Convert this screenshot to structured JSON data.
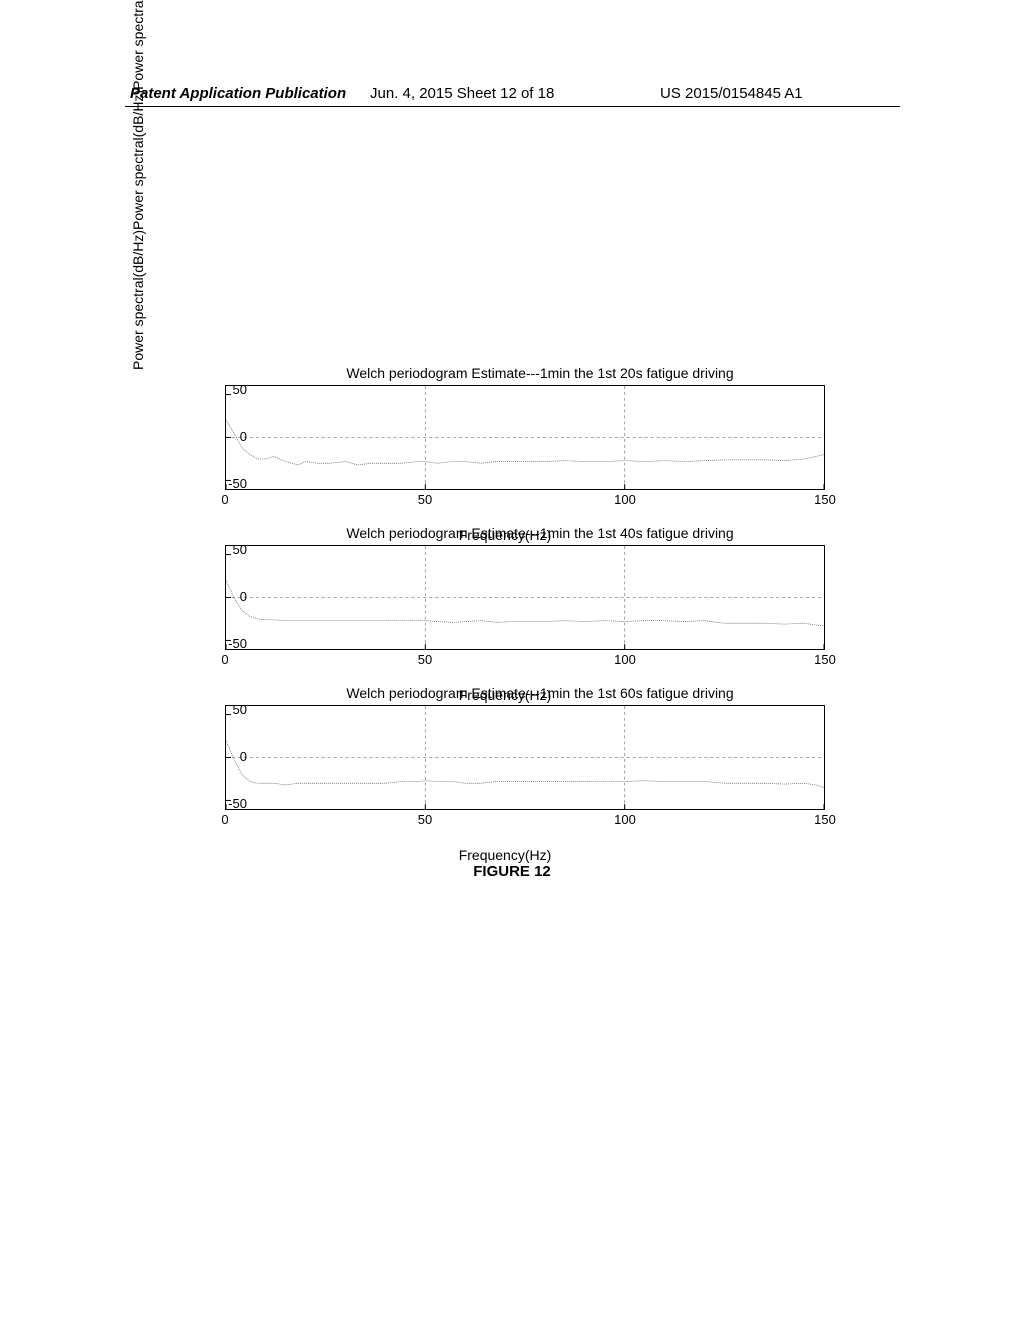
{
  "header": {
    "left": "Patent Application Publication",
    "center": "Jun. 4, 2015   Sheet 12 of 18",
    "right": "US 2015/0154845 A1"
  },
  "charts": [
    {
      "title": "Welch periodogram Estimate---1min the 1st 20s fatigue driving",
      "y_label": "Power spectral(dB/Hz)",
      "x_label": "Frequency(Hz)",
      "y_ticks": [
        50,
        0,
        -50
      ],
      "x_ticks": [
        0,
        50,
        100,
        150
      ],
      "xlim": [
        0,
        150
      ],
      "ylim": [
        -60,
        60
      ],
      "grid_v": [
        50,
        100
      ],
      "grid_h": [
        0
      ],
      "line_color": "#555555",
      "bg_color": "#ffffff",
      "series": [
        [
          0,
          20
        ],
        [
          2,
          5
        ],
        [
          4,
          -12
        ],
        [
          6,
          -20
        ],
        [
          8,
          -25
        ],
        [
          10,
          -25
        ],
        [
          12,
          -22
        ],
        [
          15,
          -28
        ],
        [
          18,
          -32
        ],
        [
          20,
          -28
        ],
        [
          23,
          -30
        ],
        [
          26,
          -30
        ],
        [
          30,
          -28
        ],
        [
          33,
          -32
        ],
        [
          36,
          -30
        ],
        [
          40,
          -30
        ],
        [
          44,
          -30
        ],
        [
          48,
          -28
        ],
        [
          50,
          -28
        ],
        [
          53,
          -30
        ],
        [
          57,
          -28
        ],
        [
          60,
          -28
        ],
        [
          64,
          -30
        ],
        [
          68,
          -28
        ],
        [
          72,
          -28
        ],
        [
          76,
          -28
        ],
        [
          80,
          -28
        ],
        [
          85,
          -27
        ],
        [
          90,
          -28
        ],
        [
          95,
          -28
        ],
        [
          100,
          -27
        ],
        [
          105,
          -28
        ],
        [
          110,
          -27
        ],
        [
          115,
          -28
        ],
        [
          120,
          -27
        ],
        [
          125,
          -26
        ],
        [
          130,
          -26
        ],
        [
          135,
          -26
        ],
        [
          140,
          -27
        ],
        [
          145,
          -25
        ],
        [
          148,
          -22
        ],
        [
          150,
          -20
        ]
      ]
    },
    {
      "title": "Welch periodogram Estimate---1min the 1st 40s fatigue driving",
      "y_label": "Power spectral(dB/Hz)",
      "x_label": "Frequency(Hz)",
      "y_ticks": [
        50,
        0,
        -50
      ],
      "x_ticks": [
        0,
        50,
        100,
        150
      ],
      "xlim": [
        0,
        150
      ],
      "ylim": [
        -60,
        60
      ],
      "grid_v": [
        50,
        100
      ],
      "grid_h": [
        0
      ],
      "line_color": "#555555",
      "bg_color": "#ffffff",
      "series": [
        [
          0,
          20
        ],
        [
          2,
          0
        ],
        [
          4,
          -15
        ],
        [
          6,
          -22
        ],
        [
          8,
          -25
        ],
        [
          10,
          -26
        ],
        [
          12,
          -26
        ],
        [
          15,
          -27
        ],
        [
          18,
          -27
        ],
        [
          20,
          -27
        ],
        [
          23,
          -27
        ],
        [
          26,
          -27
        ],
        [
          30,
          -27
        ],
        [
          33,
          -27
        ],
        [
          36,
          -27
        ],
        [
          40,
          -27
        ],
        [
          44,
          -27
        ],
        [
          48,
          -27
        ],
        [
          50,
          -27
        ],
        [
          53,
          -28
        ],
        [
          57,
          -29
        ],
        [
          60,
          -28
        ],
        [
          64,
          -27
        ],
        [
          68,
          -29
        ],
        [
          72,
          -28
        ],
        [
          76,
          -28
        ],
        [
          80,
          -28
        ],
        [
          85,
          -27
        ],
        [
          90,
          -28
        ],
        [
          95,
          -27
        ],
        [
          100,
          -28
        ],
        [
          105,
          -27
        ],
        [
          110,
          -27
        ],
        [
          115,
          -28
        ],
        [
          120,
          -27
        ],
        [
          125,
          -30
        ],
        [
          130,
          -30
        ],
        [
          135,
          -30
        ],
        [
          140,
          -31
        ],
        [
          145,
          -30
        ],
        [
          148,
          -32
        ],
        [
          150,
          -33
        ]
      ]
    },
    {
      "title": "Welch periodogram Estimate---1min the 1st 60s fatigue driving",
      "y_label": "Power spectral(dB/Hz)",
      "x_label": "Frequency(Hz)",
      "y_ticks": [
        50,
        0,
        -50
      ],
      "x_ticks": [
        0,
        50,
        100,
        150
      ],
      "xlim": [
        0,
        150
      ],
      "ylim": [
        -60,
        60
      ],
      "grid_v": [
        50,
        100
      ],
      "grid_h": [
        0
      ],
      "line_color": "#555555",
      "bg_color": "#ffffff",
      "series": [
        [
          0,
          20
        ],
        [
          2,
          -2
        ],
        [
          4,
          -20
        ],
        [
          6,
          -28
        ],
        [
          8,
          -30
        ],
        [
          10,
          -30
        ],
        [
          12,
          -30
        ],
        [
          15,
          -32
        ],
        [
          18,
          -30
        ],
        [
          20,
          -30
        ],
        [
          23,
          -30
        ],
        [
          26,
          -30
        ],
        [
          30,
          -30
        ],
        [
          33,
          -30
        ],
        [
          36,
          -30
        ],
        [
          40,
          -30
        ],
        [
          44,
          -28
        ],
        [
          48,
          -28
        ],
        [
          50,
          -27
        ],
        [
          53,
          -28
        ],
        [
          57,
          -28
        ],
        [
          60,
          -30
        ],
        [
          64,
          -30
        ],
        [
          68,
          -28
        ],
        [
          72,
          -28
        ],
        [
          76,
          -28
        ],
        [
          80,
          -28
        ],
        [
          85,
          -28
        ],
        [
          90,
          -28
        ],
        [
          95,
          -28
        ],
        [
          100,
          -28
        ],
        [
          105,
          -27
        ],
        [
          110,
          -28
        ],
        [
          115,
          -28
        ],
        [
          120,
          -28
        ],
        [
          125,
          -30
        ],
        [
          130,
          -30
        ],
        [
          135,
          -30
        ],
        [
          140,
          -31
        ],
        [
          145,
          -30
        ],
        [
          148,
          -32
        ],
        [
          150,
          -35
        ]
      ]
    }
  ],
  "figure_caption": "FIGURE 12",
  "y_axis_label_combined": "Power spectral(dB/Hz)Power spectral(dB/Hz)Power spectral(dB/Hz)"
}
